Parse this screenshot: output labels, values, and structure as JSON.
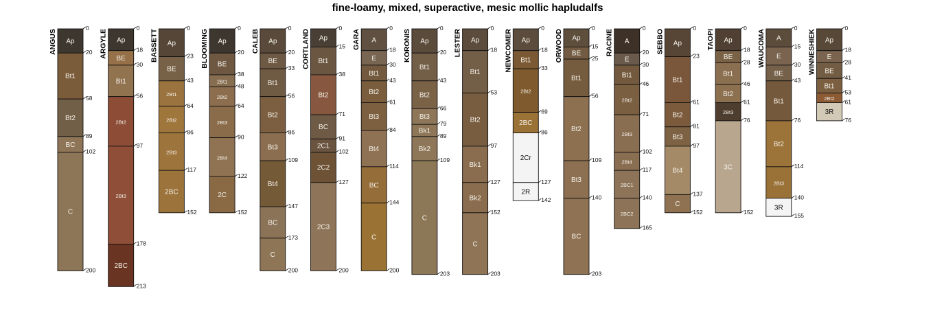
{
  "chart_data": {
    "type": "soil-profile-sketch",
    "title": "fine-loamy, mixed, superactive, mesic mollic hapludalfs",
    "depth_unit": "cm",
    "profiles": [
      {
        "name": "ANGUS",
        "horizons": [
          {
            "name": "Ap",
            "top": 0,
            "bottom": 20,
            "color": "#3e3730"
          },
          {
            "name": "Bt1",
            "top": 20,
            "bottom": 58,
            "color": "#7a5c3a"
          },
          {
            "name": "Bt2",
            "top": 58,
            "bottom": 89,
            "color": "#725f47"
          },
          {
            "name": "BC",
            "top": 89,
            "bottom": 102,
            "color": "#8f7558"
          },
          {
            "name": "C",
            "top": 102,
            "bottom": 200,
            "color": "#8c7657"
          }
        ]
      },
      {
        "name": "ARGYLE",
        "horizons": [
          {
            "name": "Ap",
            "top": 0,
            "bottom": 18,
            "color": "#3e3730"
          },
          {
            "name": "BE",
            "top": 18,
            "bottom": 30,
            "color": "#957048"
          },
          {
            "name": "Bt1",
            "top": 30,
            "bottom": 56,
            "color": "#92734f"
          },
          {
            "name": "2Bt2",
            "top": 56,
            "bottom": 97,
            "color": "#8c4c36"
          },
          {
            "name": "2Bt3",
            "top": 97,
            "bottom": 178,
            "color": "#8e4e37"
          },
          {
            "name": "2BC",
            "top": 178,
            "bottom": 213,
            "color": "#6a3422"
          }
        ]
      },
      {
        "name": "BASSETT",
        "horizons": [
          {
            "name": "Ap",
            "top": 0,
            "bottom": 23,
            "color": "#554638"
          },
          {
            "name": "BE",
            "top": 23,
            "bottom": 43,
            "color": "#776248"
          },
          {
            "name": "2Bt1",
            "top": 43,
            "bottom": 64,
            "color": "#9b733e"
          },
          {
            "name": "2Bt2",
            "top": 64,
            "bottom": 86,
            "color": "#9f763c"
          },
          {
            "name": "2Bt3",
            "top": 86,
            "bottom": 117,
            "color": "#9d743b"
          },
          {
            "name": "2BC",
            "top": 117,
            "bottom": 152,
            "color": "#9c743b"
          }
        ]
      },
      {
        "name": "BLOOMING",
        "horizons": [
          {
            "name": "Ap",
            "top": 0,
            "bottom": 20,
            "color": "#3e3730"
          },
          {
            "name": "BE",
            "top": 20,
            "bottom": 38,
            "color": "#6e5842"
          },
          {
            "name": "2Bt1",
            "top": 38,
            "bottom": 48,
            "color": "#886e50"
          },
          {
            "name": "2Bt2",
            "top": 48,
            "bottom": 64,
            "color": "#8c6e4e"
          },
          {
            "name": "2Bt3",
            "top": 64,
            "bottom": 90,
            "color": "#8a6c4b"
          },
          {
            "name": "2Bt4",
            "top": 90,
            "bottom": 122,
            "color": "#8f7352"
          },
          {
            "name": "2C",
            "top": 122,
            "bottom": 152,
            "color": "#8a6a44"
          }
        ]
      },
      {
        "name": "CALEB",
        "horizons": [
          {
            "name": "Ap",
            "top": 0,
            "bottom": 20,
            "color": "#5a4a3b"
          },
          {
            "name": "BE",
            "top": 20,
            "bottom": 33,
            "color": "#6e5a44"
          },
          {
            "name": "Bt1",
            "top": 33,
            "bottom": 56,
            "color": "#6f5a43"
          },
          {
            "name": "Bt2",
            "top": 56,
            "bottom": 86,
            "color": "#7b5f40"
          },
          {
            "name": "Bt3",
            "top": 86,
            "bottom": 109,
            "color": "#8a6e4f"
          },
          {
            "name": "Bt4",
            "top": 109,
            "bottom": 147,
            "color": "#755a37"
          },
          {
            "name": "BC",
            "top": 147,
            "bottom": 173,
            "color": "#8b7358"
          },
          {
            "name": "C",
            "top": 173,
            "bottom": 200,
            "color": "#8e7555"
          }
        ]
      },
      {
        "name": "CORTLAND",
        "horizons": [
          {
            "name": "Ap",
            "top": 0,
            "bottom": 15,
            "color": "#4a3f35"
          },
          {
            "name": "Bt1",
            "top": 15,
            "bottom": 38,
            "color": "#6b5642"
          },
          {
            "name": "Bt2",
            "top": 38,
            "bottom": 71,
            "color": "#88573f"
          },
          {
            "name": "BC",
            "top": 71,
            "bottom": 91,
            "color": "#6f5a45"
          },
          {
            "name": "2C1",
            "top": 91,
            "bottom": 102,
            "color": "#6a5440"
          },
          {
            "name": "2C2",
            "top": 102,
            "bottom": 127,
            "color": "#6d5236"
          },
          {
            "name": "2C3",
            "top": 127,
            "bottom": 200,
            "color": "#8e7458"
          }
        ]
      },
      {
        "name": "GARA",
        "horizons": [
          {
            "name": "A",
            "top": 0,
            "bottom": 18,
            "color": "#5f5042"
          },
          {
            "name": "E",
            "top": 18,
            "bottom": 30,
            "color": "#786652"
          },
          {
            "name": "Bt1",
            "top": 30,
            "bottom": 43,
            "color": "#735a3f"
          },
          {
            "name": "Bt2",
            "top": 43,
            "bottom": 61,
            "color": "#7a5d3d"
          },
          {
            "name": "Bt3",
            "top": 61,
            "bottom": 84,
            "color": "#7c603f"
          },
          {
            "name": "Bt4",
            "top": 84,
            "bottom": 114,
            "color": "#8f7253"
          },
          {
            "name": "BC",
            "top": 114,
            "bottom": 144,
            "color": "#956d38"
          },
          {
            "name": "C",
            "top": 144,
            "bottom": 200,
            "color": "#9a7234"
          }
        ]
      },
      {
        "name": "KORONIS",
        "horizons": [
          {
            "name": "Ap",
            "top": 0,
            "bottom": 20,
            "color": "#5b4b3b"
          },
          {
            "name": "Bt1",
            "top": 20,
            "bottom": 43,
            "color": "#735e47"
          },
          {
            "name": "Bt2",
            "top": 43,
            "bottom": 66,
            "color": "#7a6247"
          },
          {
            "name": "Bt3",
            "top": 66,
            "bottom": 79,
            "color": "#8e7759"
          },
          {
            "name": "Bk1",
            "top": 79,
            "bottom": 89,
            "color": "#8d7758"
          },
          {
            "name": "Bk2",
            "top": 89,
            "bottom": 109,
            "color": "#8e7658"
          },
          {
            "name": "C",
            "top": 109,
            "bottom": 203,
            "color": "#8c7757"
          }
        ]
      },
      {
        "name": "LESTER",
        "horizons": [
          {
            "name": "Ap",
            "top": 0,
            "bottom": 18,
            "color": "#5c4c3d"
          },
          {
            "name": "Bt1",
            "top": 18,
            "bottom": 53,
            "color": "#735e47"
          },
          {
            "name": "Bt2",
            "top": 53,
            "bottom": 97,
            "color": "#785d40"
          },
          {
            "name": "Bk1",
            "top": 97,
            "bottom": 127,
            "color": "#8a6d4e"
          },
          {
            "name": "Bk2",
            "top": 127,
            "bottom": 152,
            "color": "#8a6d4e"
          },
          {
            "name": "C",
            "top": 152,
            "bottom": 203,
            "color": "#8f7455"
          }
        ]
      },
      {
        "name": "NEWCOMER",
        "horizons": [
          {
            "name": "Ap",
            "top": 0,
            "bottom": 18,
            "color": "#5c4c3d"
          },
          {
            "name": "Bt1",
            "top": 18,
            "bottom": 33,
            "color": "#7b5934"
          },
          {
            "name": "2Bt2",
            "top": 33,
            "bottom": 69,
            "color": "#7f5a2e"
          },
          {
            "name": "2BC",
            "top": 69,
            "bottom": 86,
            "color": "#9b7236"
          },
          {
            "name": "2Cr",
            "top": 86,
            "bottom": 127,
            "color": "#f4f4f4"
          },
          {
            "name": "2R",
            "top": 127,
            "bottom": 142,
            "color": "#f4f4f4"
          }
        ]
      },
      {
        "name": "ORWOOD",
        "horizons": [
          {
            "name": "Ap",
            "top": 0,
            "bottom": 15,
            "color": "#5e4e3c"
          },
          {
            "name": "BE",
            "top": 15,
            "bottom": 25,
            "color": "#735c43"
          },
          {
            "name": "Bt1",
            "top": 25,
            "bottom": 56,
            "color": "#765c3f"
          },
          {
            "name": "Bt2",
            "top": 56,
            "bottom": 109,
            "color": "#8d7050"
          },
          {
            "name": "Bt3",
            "top": 109,
            "bottom": 140,
            "color": "#8d7051"
          },
          {
            "name": "BC",
            "top": 140,
            "bottom": 203,
            "color": "#8f7253"
          }
        ]
      },
      {
        "name": "RACINE",
        "horizons": [
          {
            "name": "A",
            "top": 0,
            "bottom": 20,
            "color": "#3e3128"
          },
          {
            "name": "E",
            "top": 20,
            "bottom": 30,
            "color": "#6a5a4b"
          },
          {
            "name": "Bt1",
            "top": 30,
            "bottom": 46,
            "color": "#735a3e"
          },
          {
            "name": "2Bt2",
            "top": 46,
            "bottom": 71,
            "color": "#7b5f41"
          },
          {
            "name": "2Bt3",
            "top": 71,
            "bottom": 102,
            "color": "#8a6e51"
          },
          {
            "name": "2Bt4",
            "top": 102,
            "bottom": 117,
            "color": "#8a6e52"
          },
          {
            "name": "2BC1",
            "top": 117,
            "bottom": 140,
            "color": "#8d7458"
          },
          {
            "name": "2BC2",
            "top": 140,
            "bottom": 165,
            "color": "#8d7458"
          }
        ]
      },
      {
        "name": "SEBBO",
        "horizons": [
          {
            "name": "Ap",
            "top": 0,
            "bottom": 23,
            "color": "#574636"
          },
          {
            "name": "Bt1",
            "top": 23,
            "bottom": 61,
            "color": "#7a573b"
          },
          {
            "name": "Bt2",
            "top": 61,
            "bottom": 81,
            "color": "#7c5a3c"
          },
          {
            "name": "Bt3",
            "top": 81,
            "bottom": 97,
            "color": "#7e6244"
          },
          {
            "name": "Bt4",
            "top": 97,
            "bottom": 137,
            "color": "#a48a66"
          },
          {
            "name": "C",
            "top": 137,
            "bottom": 152,
            "color": "#8f7251"
          }
        ]
      },
      {
        "name": "TAOPI",
        "horizons": [
          {
            "name": "Ap",
            "top": 0,
            "bottom": 18,
            "color": "#4f4033"
          },
          {
            "name": "BE",
            "top": 18,
            "bottom": 28,
            "color": "#7a6247"
          },
          {
            "name": "Bt1",
            "top": 28,
            "bottom": 46,
            "color": "#8a6f50"
          },
          {
            "name": "Bt2",
            "top": 46,
            "bottom": 61,
            "color": "#8c7050"
          },
          {
            "name": "2Bt3",
            "top": 61,
            "bottom": 76,
            "color": "#4d3e30"
          },
          {
            "name": "3C",
            "top": 76,
            "bottom": 152,
            "color": "#b8a68e"
          }
        ]
      },
      {
        "name": "WAUCOMA",
        "horizons": [
          {
            "name": "A",
            "top": 0,
            "bottom": 15,
            "color": "#5c4c3c"
          },
          {
            "name": "E",
            "top": 15,
            "bottom": 30,
            "color": "#7a6450"
          },
          {
            "name": "BE",
            "top": 30,
            "bottom": 43,
            "color": "#75604a"
          },
          {
            "name": "Bt1",
            "top": 43,
            "bottom": 76,
            "color": "#75593c"
          },
          {
            "name": "Bt2",
            "top": 76,
            "bottom": 114,
            "color": "#9c7338"
          },
          {
            "name": "2Bt3",
            "top": 114,
            "bottom": 140,
            "color": "#9a7238"
          },
          {
            "name": "3R",
            "top": 140,
            "bottom": 155,
            "color": "#f4f4f4"
          }
        ]
      },
      {
        "name": "WINNESHIEK",
        "horizons": [
          {
            "name": "Ap",
            "top": 0,
            "bottom": 18,
            "color": "#574838"
          },
          {
            "name": "E",
            "top": 18,
            "bottom": 28,
            "color": "#7a6450"
          },
          {
            "name": "BE",
            "top": 28,
            "bottom": 41,
            "color": "#725c44"
          },
          {
            "name": "Bt1",
            "top": 41,
            "bottom": 53,
            "color": "#7b5f40"
          },
          {
            "name": "2Bt2",
            "top": 53,
            "bottom": 61,
            "color": "#8c5a33"
          },
          {
            "name": "3R",
            "top": 61,
            "bottom": 76,
            "color": "#d3c9b7"
          }
        ]
      }
    ]
  }
}
